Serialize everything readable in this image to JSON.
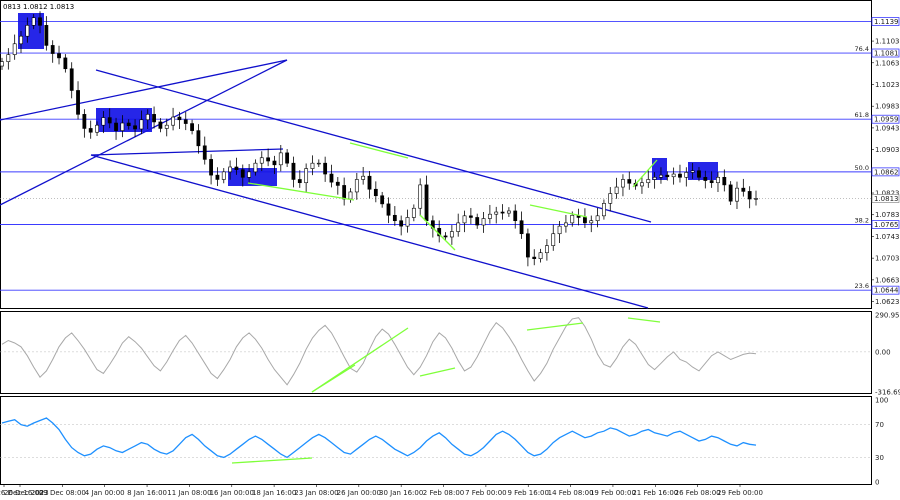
{
  "header": {
    "ohlc_text": "0813 1.0812 1.0813"
  },
  "price_axis": {
    "ticks": [
      "1.1103",
      "1.1063",
      "1.1023",
      "1.0983",
      "1.0943",
      "1.0903",
      "1.0863",
      "1.0823",
      "1.0783",
      "1.0743",
      "1.0703",
      "1.0663",
      "1.0623"
    ],
    "current_label": "1.0813"
  },
  "fib_levels": [
    {
      "percent": "",
      "price_label": "1.1139",
      "price": 1.1139
    },
    {
      "percent": "76.4",
      "price_label": "1.1081",
      "price": 1.1081
    },
    {
      "percent": "61.8",
      "price_label": "1.0959",
      "price": 1.0959
    },
    {
      "percent": "50.0",
      "price_label": "1.0862",
      "price": 1.0862
    },
    {
      "percent": "38.2",
      "price_label": "1.0765",
      "price": 1.0765
    },
    {
      "percent": "23.6",
      "price_label": "1.0644",
      "price": 1.0644
    }
  ],
  "cci_axis": {
    "ticks": [
      "290.9535",
      "0.00",
      "-316.690"
    ]
  },
  "rsi_axis": {
    "ticks": [
      "100",
      "70",
      "30",
      "0"
    ]
  },
  "time_axis": {
    "labels": [
      "26 Dec 2023",
      "26 Dec 16:00",
      "29 Dec 08:00",
      "4 Jan 00:00",
      "8 Jan 16:00",
      "11 Jan 08:00",
      "16 Jan 00:00",
      "18 Jan 16:00",
      "23 Jan 08:00",
      "26 Jan 00:00",
      "30 Jan 16:00",
      "2 Feb 08:00",
      "7 Feb 00:00",
      "9 Feb 16:00",
      "14 Feb 08:00",
      "19 Feb 00:00",
      "21 Feb 16:00",
      "26 Feb 08:00",
      "29 Feb 00:00"
    ]
  },
  "colors": {
    "candle": "#000000",
    "fib_line": "#3b3bff",
    "channel": "#1010cc",
    "box": "#1414e6",
    "divergence": "#7fff3a",
    "cci_line": "#a8a8a8",
    "rsi_line": "#1e90ff"
  },
  "chart_data": [
    {
      "type": "candlestick",
      "title": "",
      "symbol": "",
      "ylim": [
        1.0613,
        1.1175
      ],
      "current_price": 1.0813,
      "close_series": [
        1.1065,
        1.1078,
        1.1098,
        1.1112,
        1.1132,
        1.1146,
        1.1132,
        1.1095,
        1.108,
        1.1072,
        1.1052,
        1.1012,
        1.0968,
        1.0942,
        1.0935,
        1.0948,
        1.0962,
        1.0952,
        1.0938,
        1.0952,
        1.0947,
        1.0941,
        1.0958,
        1.0968,
        1.0954,
        1.0942,
        1.0948,
        1.0963,
        1.0958,
        1.0951,
        1.0938,
        1.091,
        1.0885,
        1.0856,
        1.0848,
        1.0862,
        1.0871,
        1.0866,
        1.0852,
        1.0862,
        1.0878,
        1.0888,
        1.0882,
        1.0875,
        1.0897,
        1.0878,
        1.0848,
        1.0842,
        1.0868,
        1.0878,
        1.0878,
        1.0858,
        1.0843,
        1.0837,
        1.0812,
        1.0825,
        1.0848,
        1.0854,
        1.083,
        1.0818,
        1.0803,
        1.0782,
        1.0772,
        1.0762,
        1.0778,
        1.0795,
        1.0838,
        1.0772,
        1.0758,
        1.0744,
        1.0742,
        1.0752,
        1.0768,
        1.0781,
        1.0778,
        1.0764,
        1.0776,
        1.0784,
        1.0788,
        1.0786,
        1.079,
        1.0772,
        1.0748,
        1.0705,
        1.0702,
        1.0713,
        1.0726,
        1.0748,
        1.0762,
        1.0768,
        1.0782,
        1.0778,
        1.0768,
        1.0772,
        1.0781,
        1.0804,
        1.0822,
        1.0834,
        1.0848,
        1.0841,
        1.0836,
        1.0842,
        1.0848,
        1.0852,
        1.0856,
        1.0853,
        1.0858,
        1.0852,
        1.0861,
        1.0864,
        1.0852,
        1.0846,
        1.0842,
        1.0852,
        1.0838,
        1.0808,
        1.0832,
        1.0826,
        1.0812,
        1.0813
      ],
      "levels": [
        1.1139,
        1.1081,
        1.0959,
        1.0862,
        1.0765,
        1.0644
      ]
    },
    {
      "type": "line",
      "title": "",
      "ylim": [
        -316.69,
        290.9535
      ],
      "zero": 0,
      "series": [
        {
          "values": [
            60,
            90,
            70,
            40,
            -30,
            -120,
            -200,
            -150,
            -60,
            40,
            110,
            150,
            90,
            20,
            -60,
            -140,
            -170,
            -100,
            -20,
            70,
            120,
            80,
            30,
            -40,
            -110,
            -150,
            -80,
            10,
            90,
            130,
            70,
            -10,
            -90,
            -170,
            -210,
            -140,
            -60,
            40,
            110,
            150,
            100,
            30,
            -60,
            -140,
            -200,
            -260,
            -180,
            -90,
            20,
            110,
            170,
            210,
            150,
            60,
            -40,
            -130,
            -160,
            -90,
            20,
            120,
            180,
            140,
            60,
            -30,
            -120,
            -180,
            -120,
            -30,
            80,
            150,
            110,
            30,
            -70,
            -150,
            -120,
            -40,
            60,
            160,
            230,
            190,
            120,
            40,
            -60,
            -150,
            -230,
            -170,
            -90,
            20,
            110,
            200,
            260,
            270,
            200,
            100,
            -20,
            -100,
            -120,
            -50,
            40,
            100,
            60,
            -20,
            -100,
            -140,
            -90,
            -40,
            0,
            -60,
            -80,
            -120,
            -150,
            -90,
            -30,
            0,
            -30,
            -60,
            -40,
            -20,
            -10,
            -15
          ]
        }
      ]
    },
    {
      "type": "line",
      "title": "",
      "ylim": [
        0,
        100
      ],
      "series": [
        {
          "values": [
            72,
            74,
            76,
            70,
            68,
            72,
            75,
            78,
            72,
            64,
            52,
            42,
            36,
            32,
            34,
            40,
            44,
            42,
            38,
            36,
            40,
            44,
            48,
            46,
            40,
            36,
            34,
            38,
            46,
            54,
            58,
            52,
            44,
            38,
            32,
            30,
            34,
            40,
            46,
            52,
            56,
            52,
            46,
            40,
            34,
            30,
            36,
            42,
            48,
            54,
            58,
            54,
            48,
            42,
            36,
            34,
            40,
            46,
            52,
            56,
            52,
            46,
            40,
            36,
            32,
            36,
            42,
            50,
            56,
            60,
            54,
            46,
            40,
            34,
            32,
            36,
            42,
            50,
            58,
            62,
            58,
            52,
            44,
            36,
            32,
            34,
            40,
            48,
            54,
            58,
            62,
            58,
            54,
            56,
            60,
            62,
            66,
            64,
            60,
            56,
            58,
            62,
            64,
            60,
            58,
            56,
            60,
            62,
            58,
            54,
            50,
            52,
            56,
            54,
            50,
            46,
            44,
            48,
            46,
            45
          ]
        }
      ],
      "levels": [
        70,
        30
      ]
    }
  ]
}
